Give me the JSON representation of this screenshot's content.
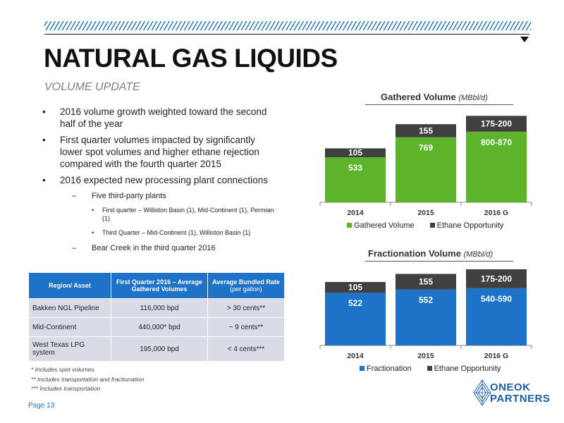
{
  "header": {
    "title": "NATURAL GAS LIQUIDS",
    "subtitle": "VOLUME UPDATE"
  },
  "bullets": [
    {
      "text": "2016 volume growth weighted toward the second half of the year"
    },
    {
      "text": "First quarter volumes impacted by significantly lower spot volumes and higher ethane rejection compared with the fourth quarter 2015"
    },
    {
      "text": "2016 expected new processing plant connections"
    },
    {
      "text": "Five third-party plants"
    },
    {
      "text": "First quarter – Williston Basin (1), Mid-Continent (1), Permian (1)"
    },
    {
      "text": "Third Quarter – Mid-Continent (1), Williston Basin (1)"
    },
    {
      "text": "Bear Creek in the third quarter 2016"
    }
  ],
  "table": {
    "headers": [
      "Region/ Asset",
      "First Quarter 2016 – Average Gathered Volumes",
      "Average Bundled Rate",
      "(per gallon)"
    ],
    "rows": [
      [
        "Bakken NGL Pipeline",
        "116,000 bpd",
        "> 30 cents**"
      ],
      [
        "Mid-Continent",
        "440,000* bpd",
        "~ 9 cents**"
      ],
      [
        "West Texas LPG system",
        "195,000 bpd",
        "< 4 cents***"
      ]
    ]
  },
  "footnotes": [
    "* Includes spot volumes",
    "** Includes transportation and fractionation",
    "*** Includes transportation"
  ],
  "page": {
    "label": "Page 13"
  },
  "logo": {
    "line1": "ONEOK",
    "line2": "PARTNERS"
  },
  "colors": {
    "accent_blue": "#1e73c9",
    "green": "#5db42a",
    "dark_gray": "#404040",
    "table_row": "#d9dbe6"
  },
  "chart_data": [
    {
      "type": "bar",
      "stacked": true,
      "title": "Gathered Volume",
      "unit": "(MBbl/d)",
      "categories": [
        "2014",
        "2015",
        "2016 G"
      ],
      "series": [
        {
          "name": "Gathered Volume",
          "color": "#5db42a",
          "values": [
            533,
            769,
            835
          ],
          "labels": [
            "533",
            "769",
            "800-870"
          ]
        },
        {
          "name": "Ethane Opportunity",
          "color": "#404040",
          "values": [
            105,
            155,
            187.5
          ],
          "labels": [
            "105",
            "155",
            "175-200"
          ]
        }
      ],
      "legend": "bottom",
      "ylim": [
        0,
        1100
      ]
    },
    {
      "type": "bar",
      "stacked": true,
      "title": "Fractionation Volume",
      "unit": "(MBbl/d)",
      "categories": [
        "2014",
        "2015",
        "2016 G"
      ],
      "series": [
        {
          "name": "Fractionation",
          "color": "#1e73c9",
          "values": [
            522,
            552,
            565
          ],
          "labels": [
            "522",
            "552",
            "540-590"
          ]
        },
        {
          "name": "Ethane Opportunity",
          "color": "#404040",
          "values": [
            105,
            155,
            187.5
          ],
          "labels": [
            "105",
            "155",
            "175-200"
          ]
        }
      ],
      "legend": "bottom",
      "ylim": [
        0,
        780
      ]
    }
  ]
}
